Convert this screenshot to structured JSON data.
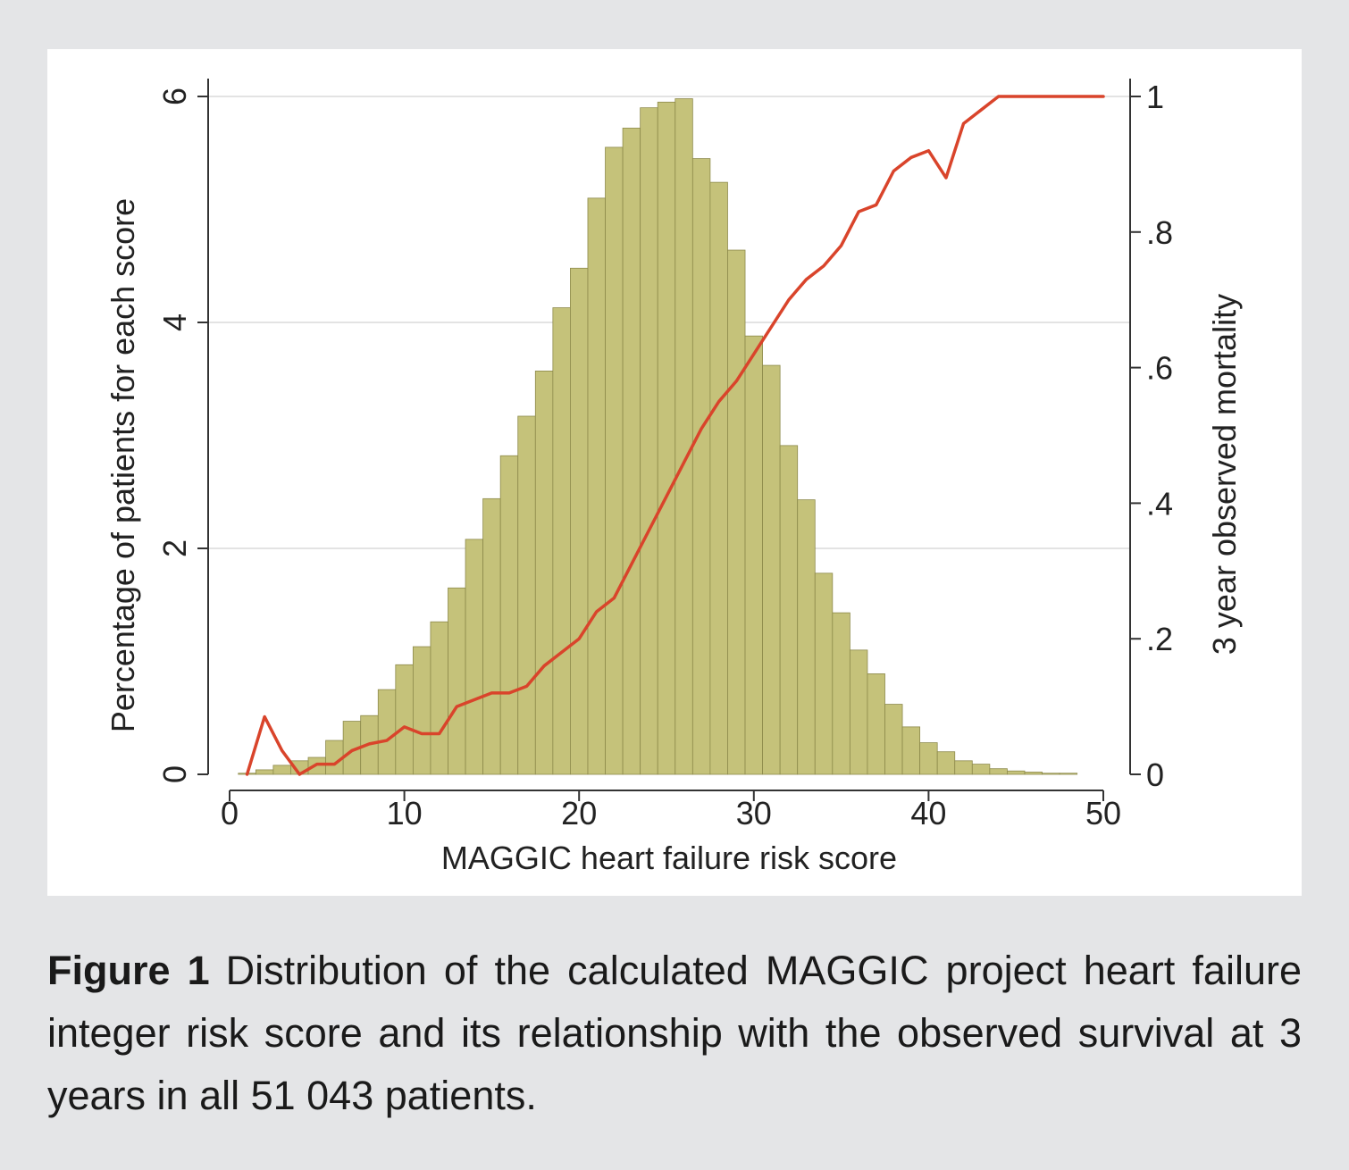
{
  "figure": {
    "caption_label": "Figure 1",
    "caption_text": "Distribution of the calculated MAGGIC project heart failure integer risk score and its relationship with the observed survival at 3 years in all 51 043 patients."
  },
  "chart_data": {
    "type": "bar",
    "xlabel": "MAGGIC heart failure risk score",
    "ylabel": "Percentage of patients for each score",
    "y2label": "3 year observed mortality",
    "xlim": [
      -1,
      51
    ],
    "ylim": [
      0,
      6
    ],
    "y2lim": [
      0,
      1
    ],
    "x_ticks": [
      0,
      10,
      20,
      30,
      40,
      50
    ],
    "y_ticks": [
      0,
      2,
      4,
      6
    ],
    "y2_ticks": [
      0,
      0.2,
      0.4,
      0.6,
      0.8,
      1
    ],
    "x_tick_labels": [
      "0",
      "10",
      "20",
      "30",
      "40",
      "50"
    ],
    "y_tick_labels": [
      "0",
      "2",
      "4",
      "6"
    ],
    "y2_tick_labels": [
      "0",
      ".2",
      ".4",
      ".6",
      ".8",
      "1"
    ],
    "grid": true,
    "colors": {
      "bars": "#c5c27a",
      "bar_edge": "#8d8a4b",
      "line": "#d9442b"
    },
    "bars": {
      "x": [
        1,
        2,
        3,
        4,
        5,
        6,
        7,
        8,
        9,
        10,
        11,
        12,
        13,
        14,
        15,
        16,
        17,
        18,
        19,
        20,
        21,
        22,
        23,
        24,
        25,
        26,
        27,
        28,
        29,
        30,
        31,
        32,
        33,
        34,
        35,
        36,
        37,
        38,
        39,
        40,
        41,
        42,
        43,
        44,
        45,
        46,
        47,
        48,
        49
      ],
      "values": [
        0.01,
        0.04,
        0.08,
        0.12,
        0.15,
        0.3,
        0.47,
        0.52,
        0.75,
        0.97,
        1.13,
        1.35,
        1.65,
        2.08,
        2.44,
        2.82,
        3.17,
        3.57,
        4.13,
        4.48,
        5.1,
        5.55,
        5.72,
        5.9,
        5.95,
        5.98,
        5.45,
        5.24,
        4.64,
        3.88,
        3.62,
        2.91,
        2.43,
        1.78,
        1.43,
        1.1,
        0.89,
        0.62,
        0.42,
        0.28,
        0.2,
        0.12,
        0.09,
        0.05,
        0.03,
        0.02,
        0.01,
        0.01,
        0.0
      ]
    },
    "mortality_line": {
      "x": [
        1,
        2,
        3,
        4,
        5,
        6,
        7,
        8,
        9,
        10,
        11,
        12,
        13,
        14,
        15,
        16,
        17,
        18,
        19,
        20,
        21,
        22,
        23,
        24,
        25,
        26,
        27,
        28,
        29,
        30,
        31,
        32,
        33,
        34,
        35,
        36,
        37,
        38,
        39,
        40,
        41,
        42,
        43,
        44,
        45,
        46,
        47,
        48,
        49,
        50
      ],
      "y": [
        0.0,
        0.085,
        0.035,
        0.0,
        0.015,
        0.015,
        0.035,
        0.045,
        0.05,
        0.07,
        0.06,
        0.06,
        0.1,
        0.11,
        0.12,
        0.12,
        0.13,
        0.16,
        0.18,
        0.2,
        0.24,
        0.26,
        0.31,
        0.36,
        0.41,
        0.46,
        0.51,
        0.55,
        0.58,
        0.62,
        0.66,
        0.7,
        0.73,
        0.75,
        0.78,
        0.83,
        0.84,
        0.89,
        0.91,
        0.92,
        0.88,
        0.96,
        0.98,
        1.0,
        1.0,
        1.0,
        1.0,
        1.0,
        1.0,
        1.0
      ]
    }
  }
}
